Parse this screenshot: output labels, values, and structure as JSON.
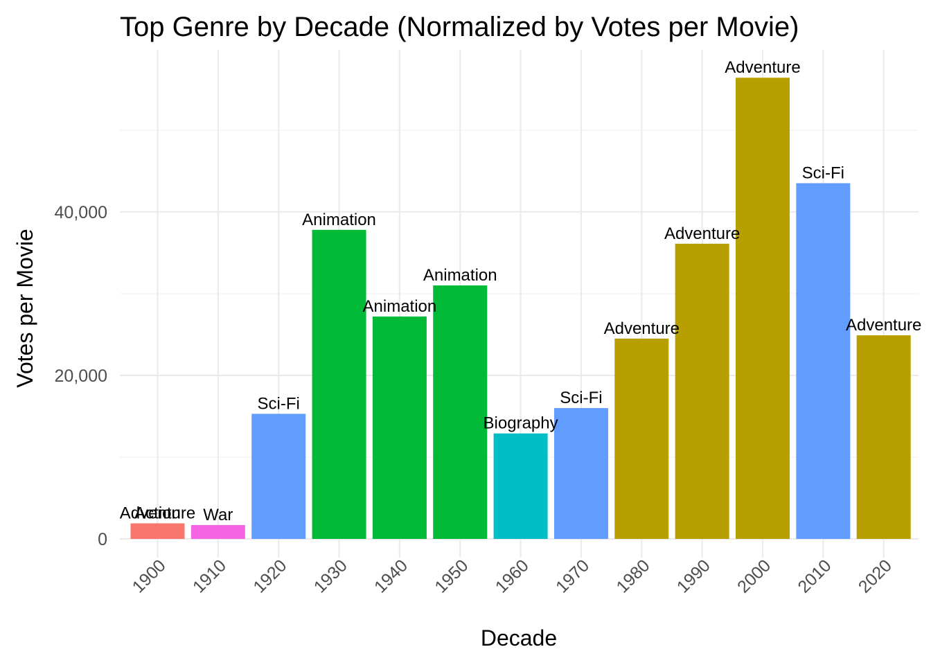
{
  "chart_data": {
    "type": "bar",
    "title": "Top Genre by Decade (Normalized by Votes per Movie)",
    "xlabel": "Decade",
    "ylabel": "Votes per Movie",
    "ylim": [
      0,
      60000
    ],
    "yticks": [
      0,
      20000,
      40000
    ],
    "ytick_labels": [
      "0",
      "20,000",
      "40,000"
    ],
    "grid": true,
    "legend": "none",
    "categories": [
      "1900",
      "1910",
      "1920",
      "1930",
      "1940",
      "1950",
      "1960",
      "1970",
      "1980",
      "1990",
      "2000",
      "2010",
      "2020"
    ],
    "bars": [
      {
        "decade": "1900",
        "genre": "Adventure",
        "value": 1900,
        "color": "#B79F00"
      },
      {
        "decade": "1900",
        "genre": "Action",
        "value": 1900,
        "color": "#F8766D"
      },
      {
        "decade": "1910",
        "genre": "War",
        "value": 1700,
        "color": "#F564E3"
      },
      {
        "decade": "1920",
        "genre": "Sci-Fi",
        "value": 15300,
        "color": "#619CFF"
      },
      {
        "decade": "1930",
        "genre": "Animation",
        "value": 37800,
        "color": "#00BA38"
      },
      {
        "decade": "1940",
        "genre": "Animation",
        "value": 27200,
        "color": "#00BA38"
      },
      {
        "decade": "1950",
        "genre": "Animation",
        "value": 31000,
        "color": "#00BA38"
      },
      {
        "decade": "1960",
        "genre": "Biography",
        "value": 12900,
        "color": "#00BFC4"
      },
      {
        "decade": "1970",
        "genre": "Sci-Fi",
        "value": 16000,
        "color": "#619CFF"
      },
      {
        "decade": "1980",
        "genre": "Adventure",
        "value": 24500,
        "color": "#B79F00"
      },
      {
        "decade": "1990",
        "genre": "Adventure",
        "value": 36100,
        "color": "#B79F00"
      },
      {
        "decade": "2000",
        "genre": "Adventure",
        "value": 56400,
        "color": "#B79F00"
      },
      {
        "decade": "2010",
        "genre": "Sci-Fi",
        "value": 43500,
        "color": "#619CFF"
      },
      {
        "decade": "2020",
        "genre": "Adventure",
        "value": 24900,
        "color": "#B79F00"
      }
    ]
  }
}
